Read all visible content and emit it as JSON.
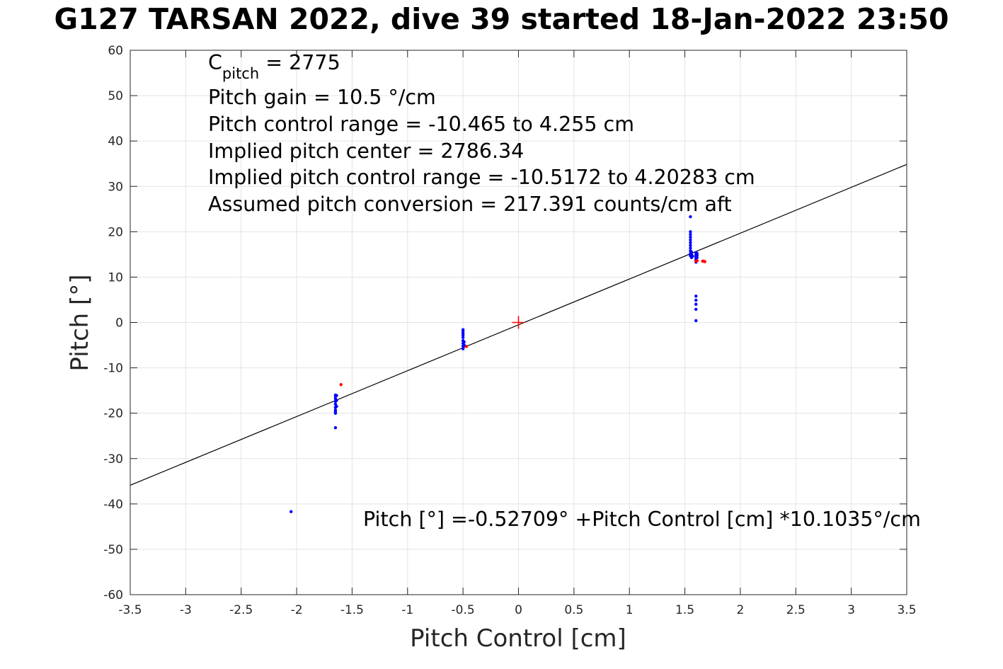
{
  "title": "G127 TARSAN 2022, dive 39 started 18-Jan-2022 23:50",
  "chart_data": {
    "type": "scatter",
    "title": "G127 TARSAN 2022, dive 39 started 18-Jan-2022 23:50",
    "xlabel": "Pitch Control [cm]",
    "ylabel": "Pitch [°]",
    "xlim": [
      -3.5,
      3.5
    ],
    "ylim": [
      -60,
      60
    ],
    "x_ticks": [
      -3.5,
      -3,
      -2.5,
      -2,
      -1.5,
      -1,
      -0.5,
      0,
      0.5,
      1,
      1.5,
      2,
      2.5,
      3,
      3.5
    ],
    "x_tick_labels": [
      "-3.5",
      "-3",
      "-2.5",
      "-2",
      "-1.5",
      "-1",
      "-0.5",
      "0",
      "0.5",
      "1",
      "1.5",
      "2",
      "2.5",
      "3",
      "3.5"
    ],
    "y_ticks": [
      -60,
      -50,
      -40,
      -30,
      -20,
      -10,
      0,
      10,
      20,
      30,
      40,
      50,
      60
    ],
    "y_tick_labels": [
      "-60",
      "-50",
      "-40",
      "-30",
      "-20",
      "-10",
      "0",
      "10",
      "20",
      "30",
      "40",
      "50",
      "60"
    ],
    "grid": true,
    "colors": {
      "blue": "#0000ff",
      "red": "#ff0000",
      "fit_line": "#000000",
      "grid": "#e3e3e3"
    },
    "series": [
      {
        "color": "#0000ff",
        "marker": "dot",
        "x": [
          -2.05,
          -1.65,
          -1.65,
          -1.65,
          -1.65,
          -1.65,
          -1.65,
          -1.65,
          -1.65,
          -1.65,
          -1.64,
          -1.64,
          -1.64,
          -1.65,
          -0.5,
          -0.5,
          -0.5,
          -0.5,
          -0.5,
          -0.5,
          -0.5,
          -0.5,
          -0.5,
          -0.49,
          -0.49,
          1.55,
          1.55,
          1.55,
          1.55,
          1.55,
          1.55,
          1.55,
          1.55,
          1.55,
          1.55,
          1.55,
          1.56,
          1.56,
          1.56,
          1.57,
          1.6,
          1.6,
          1.6,
          1.6,
          1.6,
          1.6,
          1.61,
          1.61,
          1.61,
          1.6,
          1.6,
          1.6,
          1.6,
          1.6
        ],
        "y": [
          -41.7,
          -23.2,
          -20.0,
          -19.3,
          -18.7,
          -18.0,
          -17.4,
          -16.8,
          -16.3,
          -16.0,
          -18.5,
          -17.2,
          -16.1,
          -19.7,
          -1.6,
          -2.0,
          -2.4,
          -2.8,
          -3.3,
          -4.0,
          -4.6,
          -5.2,
          -5.8,
          -5.0,
          -4.3,
          23.3,
          20.0,
          19.4,
          18.8,
          18.2,
          17.6,
          17.0,
          16.4,
          15.8,
          15.2,
          14.7,
          14.3,
          15.0,
          15.5,
          14.6,
          15.4,
          15.0,
          14.6,
          14.2,
          13.8,
          13.3,
          15.2,
          14.8,
          14.3,
          5.8,
          4.9,
          4.0,
          2.9,
          0.4
        ]
      },
      {
        "color": "#ff0000",
        "marker": "dot",
        "x": [
          -1.6,
          -0.47,
          1.6,
          1.61,
          1.66,
          1.67,
          1.68
        ],
        "y": [
          -13.7,
          -5.3,
          13.5,
          13.6,
          13.5,
          13.5,
          13.4
        ]
      },
      {
        "color": "#ff0000",
        "marker": "plus",
        "x": [
          0
        ],
        "y": [
          0
        ]
      }
    ],
    "fit_line": {
      "intercept": -0.52709,
      "slope": 10.1035
    },
    "annotations": {
      "c_pitch_label": "C",
      "c_pitch_sub": "pitch",
      "c_pitch_value": " = 2775",
      "lines": [
        "Pitch gain = 10.5 °/cm",
        "Pitch control range = -10.465 to 4.255 cm",
        "Implied pitch center = 2786.34",
        "Implied pitch control range = -10.5172 to 4.20283 cm",
        "Assumed pitch conversion = 217.391 counts/cm aft"
      ],
      "fit_equation": "Pitch [°] =-0.52709° +Pitch Control [cm] *10.1035°/cm"
    }
  }
}
